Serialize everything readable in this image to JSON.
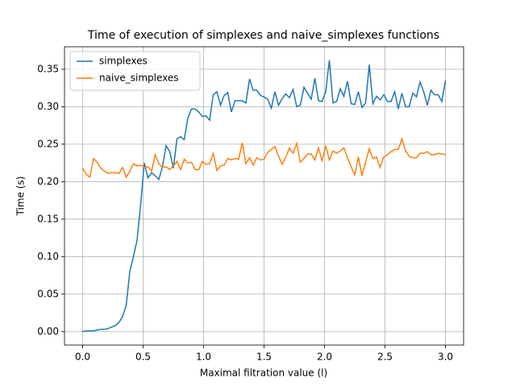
{
  "chart_data": {
    "type": "line",
    "title": "Time of execution of simplexes and naive_simplexes functions",
    "xlabel": "Maximal filtration value (l)",
    "ylabel": "Time (s)",
    "x": [
      0,
      0.03,
      0.06,
      0.09,
      0.12,
      0.15,
      0.18,
      0.21,
      0.24,
      0.27,
      0.3,
      0.33,
      0.36,
      0.39,
      0.42,
      0.45,
      0.48,
      0.51,
      0.54,
      0.57,
      0.6,
      0.63,
      0.66,
      0.69,
      0.72,
      0.75,
      0.78,
      0.81,
      0.84,
      0.87,
      0.9,
      0.93,
      0.96,
      0.99,
      1.02,
      1.05,
      1.08,
      1.11,
      1.14,
      1.17,
      1.2,
      1.23,
      1.26,
      1.29,
      1.32,
      1.35,
      1.38,
      1.41,
      1.44,
      1.47,
      1.5,
      1.53,
      1.56,
      1.59,
      1.62,
      1.65,
      1.68,
      1.71,
      1.74,
      1.77,
      1.8,
      1.83,
      1.86,
      1.89,
      1.92,
      1.95,
      1.98,
      2.01,
      2.04,
      2.07,
      2.1,
      2.13,
      2.16,
      2.19,
      2.22,
      2.25,
      2.28,
      2.31,
      2.34,
      2.37,
      2.4,
      2.43,
      2.46,
      2.49,
      2.52,
      2.55,
      2.58,
      2.61,
      2.64,
      2.67,
      2.7,
      2.73,
      2.76,
      2.79,
      2.82,
      2.85,
      2.88,
      2.91,
      2.94,
      2.97,
      3.0
    ],
    "series": [
      {
        "name": "simplexes",
        "color": "#1f77b4",
        "values": [
          0,
          0.001,
          0.001,
          0.001,
          0.002,
          0.003,
          0.003,
          0.004,
          0.006,
          0.008,
          0.012,
          0.02,
          0.035,
          0.08,
          0.1,
          0.122,
          0.17,
          0.225,
          0.205,
          0.212,
          0.208,
          0.203,
          0.22,
          0.248,
          0.24,
          0.218,
          0.257,
          0.26,
          0.256,
          0.285,
          0.297,
          0.297,
          0.293,
          0.287,
          0.288,
          0.282,
          0.316,
          0.32,
          0.302,
          0.315,
          0.319,
          0.293,
          0.308,
          0.308,
          0.308,
          0.305,
          0.337,
          0.322,
          0.322,
          0.315,
          0.313,
          0.31,
          0.298,
          0.32,
          0.302,
          0.311,
          0.317,
          0.312,
          0.323,
          0.3,
          0.302,
          0.326,
          0.318,
          0.31,
          0.338,
          0.308,
          0.307,
          0.32,
          0.362,
          0.305,
          0.307,
          0.324,
          0.314,
          0.334,
          0.304,
          0.303,
          0.32,
          0.299,
          0.305,
          0.356,
          0.304,
          0.314,
          0.309,
          0.316,
          0.307,
          0.307,
          0.32,
          0.297,
          0.318,
          0.3,
          0.3,
          0.318,
          0.313,
          0.333,
          0.32,
          0.302,
          0.322,
          0.316,
          0.316,
          0.307,
          0.335
        ]
      },
      {
        "name": "naive_simplexes",
        "color": "#ff7f0e",
        "values": [
          0.218,
          0.21,
          0.206,
          0.231,
          0.226,
          0.218,
          0.214,
          0.211,
          0.212,
          0.212,
          0.211,
          0.219,
          0.206,
          0.214,
          0.224,
          0.221,
          0.222,
          0.219,
          0.22,
          0.214,
          0.236,
          0.224,
          0.219,
          0.22,
          0.216,
          0.221,
          0.227,
          0.216,
          0.23,
          0.225,
          0.226,
          0.216,
          0.216,
          0.227,
          0.223,
          0.224,
          0.238,
          0.215,
          0.221,
          0.222,
          0.231,
          0.229,
          0.231,
          0.23,
          0.252,
          0.224,
          0.232,
          0.222,
          0.232,
          0.229,
          0.23,
          0.239,
          0.243,
          0.247,
          0.234,
          0.223,
          0.233,
          0.245,
          0.238,
          0.251,
          0.226,
          0.231,
          0.237,
          0.237,
          0.229,
          0.245,
          0.228,
          0.248,
          0.229,
          0.241,
          0.238,
          0.241,
          0.245,
          0.232,
          0.22,
          0.209,
          0.233,
          0.208,
          0.226,
          0.244,
          0.231,
          0.233,
          0.219,
          0.233,
          0.236,
          0.24,
          0.243,
          0.243,
          0.257,
          0.241,
          0.234,
          0.232,
          0.232,
          0.238,
          0.238,
          0.24,
          0.236,
          0.236,
          0.238,
          0.237,
          0.236
        ]
      }
    ],
    "xlim": [
      -0.15,
      3.15
    ],
    "ylim": [
      -0.018,
      0.38
    ],
    "xticks": [
      {
        "value": 0,
        "label": "0.0"
      },
      0.5,
      {
        "value": 1,
        "label": "1.0"
      },
      1.5,
      {
        "value": 2,
        "label": "2.0"
      },
      2.5,
      {
        "value": 3,
        "label": "3.0"
      }
    ],
    "yticks": [
      {
        "value": 0,
        "label": "0.00"
      },
      0.05,
      {
        "value": 0.1,
        "label": "0.10"
      },
      0.15,
      {
        "value": 0.2,
        "label": "0.20"
      },
      0.25,
      {
        "value": 0.3,
        "label": "0.30"
      },
      0.35
    ],
    "grid": true,
    "legend": "upper left"
  }
}
